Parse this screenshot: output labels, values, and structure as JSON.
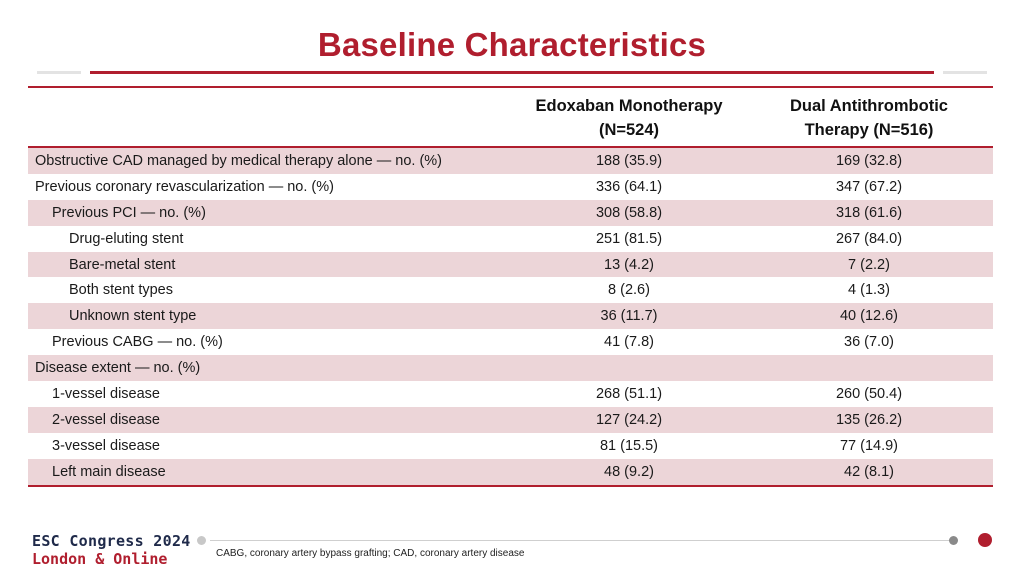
{
  "title": "Baseline Characteristics",
  "columns": {
    "c1_line1": "Edoxaban Monotherapy",
    "c1_line2": "(N=524)",
    "c2_line1": "Dual Antithrombotic",
    "c2_line2": "Therapy (N=516)"
  },
  "rows": [
    {
      "label": "Obstructive CAD managed by medical therapy alone — no. (%)",
      "c1": "188 (35.9)",
      "c2": "169 (32.8)"
    },
    {
      "label": "Previous coronary revascularization — no. (%)",
      "c1": "336 (64.1)",
      "c2": "347 (67.2)"
    },
    {
      "label": "Previous PCI — no. (%)",
      "c1": "308 (58.8)",
      "c2": "318 (61.6)"
    },
    {
      "label": "Drug-eluting stent",
      "c1": "251 (81.5)",
      "c2": "267 (84.0)"
    },
    {
      "label": "Bare-metal stent",
      "c1": "13 (4.2)",
      "c2": "7 (2.2)"
    },
    {
      "label": "Both stent types",
      "c1": "8 (2.6)",
      "c2": "4 (1.3)"
    },
    {
      "label": "Unknown stent type",
      "c1": "36 (11.7)",
      "c2": "40 (12.6)"
    },
    {
      "label": "Previous CABG — no. (%)",
      "c1": "41 (7.8)",
      "c2": "36 (7.0)"
    },
    {
      "label": "Disease extent — no. (%)",
      "c1": "",
      "c2": ""
    },
    {
      "label": "1-vessel disease",
      "c1": "268 (51.1)",
      "c2": "260 (50.4)"
    },
    {
      "label": "2-vessel disease",
      "c1": "127 (24.2)",
      "c2": "135 (26.2)"
    },
    {
      "label": "3-vessel disease",
      "c1": "81 (15.5)",
      "c2": "77 (14.9)"
    },
    {
      "label": "Left main disease",
      "c1": "48 (9.2)",
      "c2": "42 (8.1)"
    }
  ],
  "footer": {
    "logo_line1": "ESC Congress 2024",
    "logo_line2": "London & Online",
    "footnote": "CABG, coronary artery bypass grafting; CAD, coronary artery disease"
  }
}
